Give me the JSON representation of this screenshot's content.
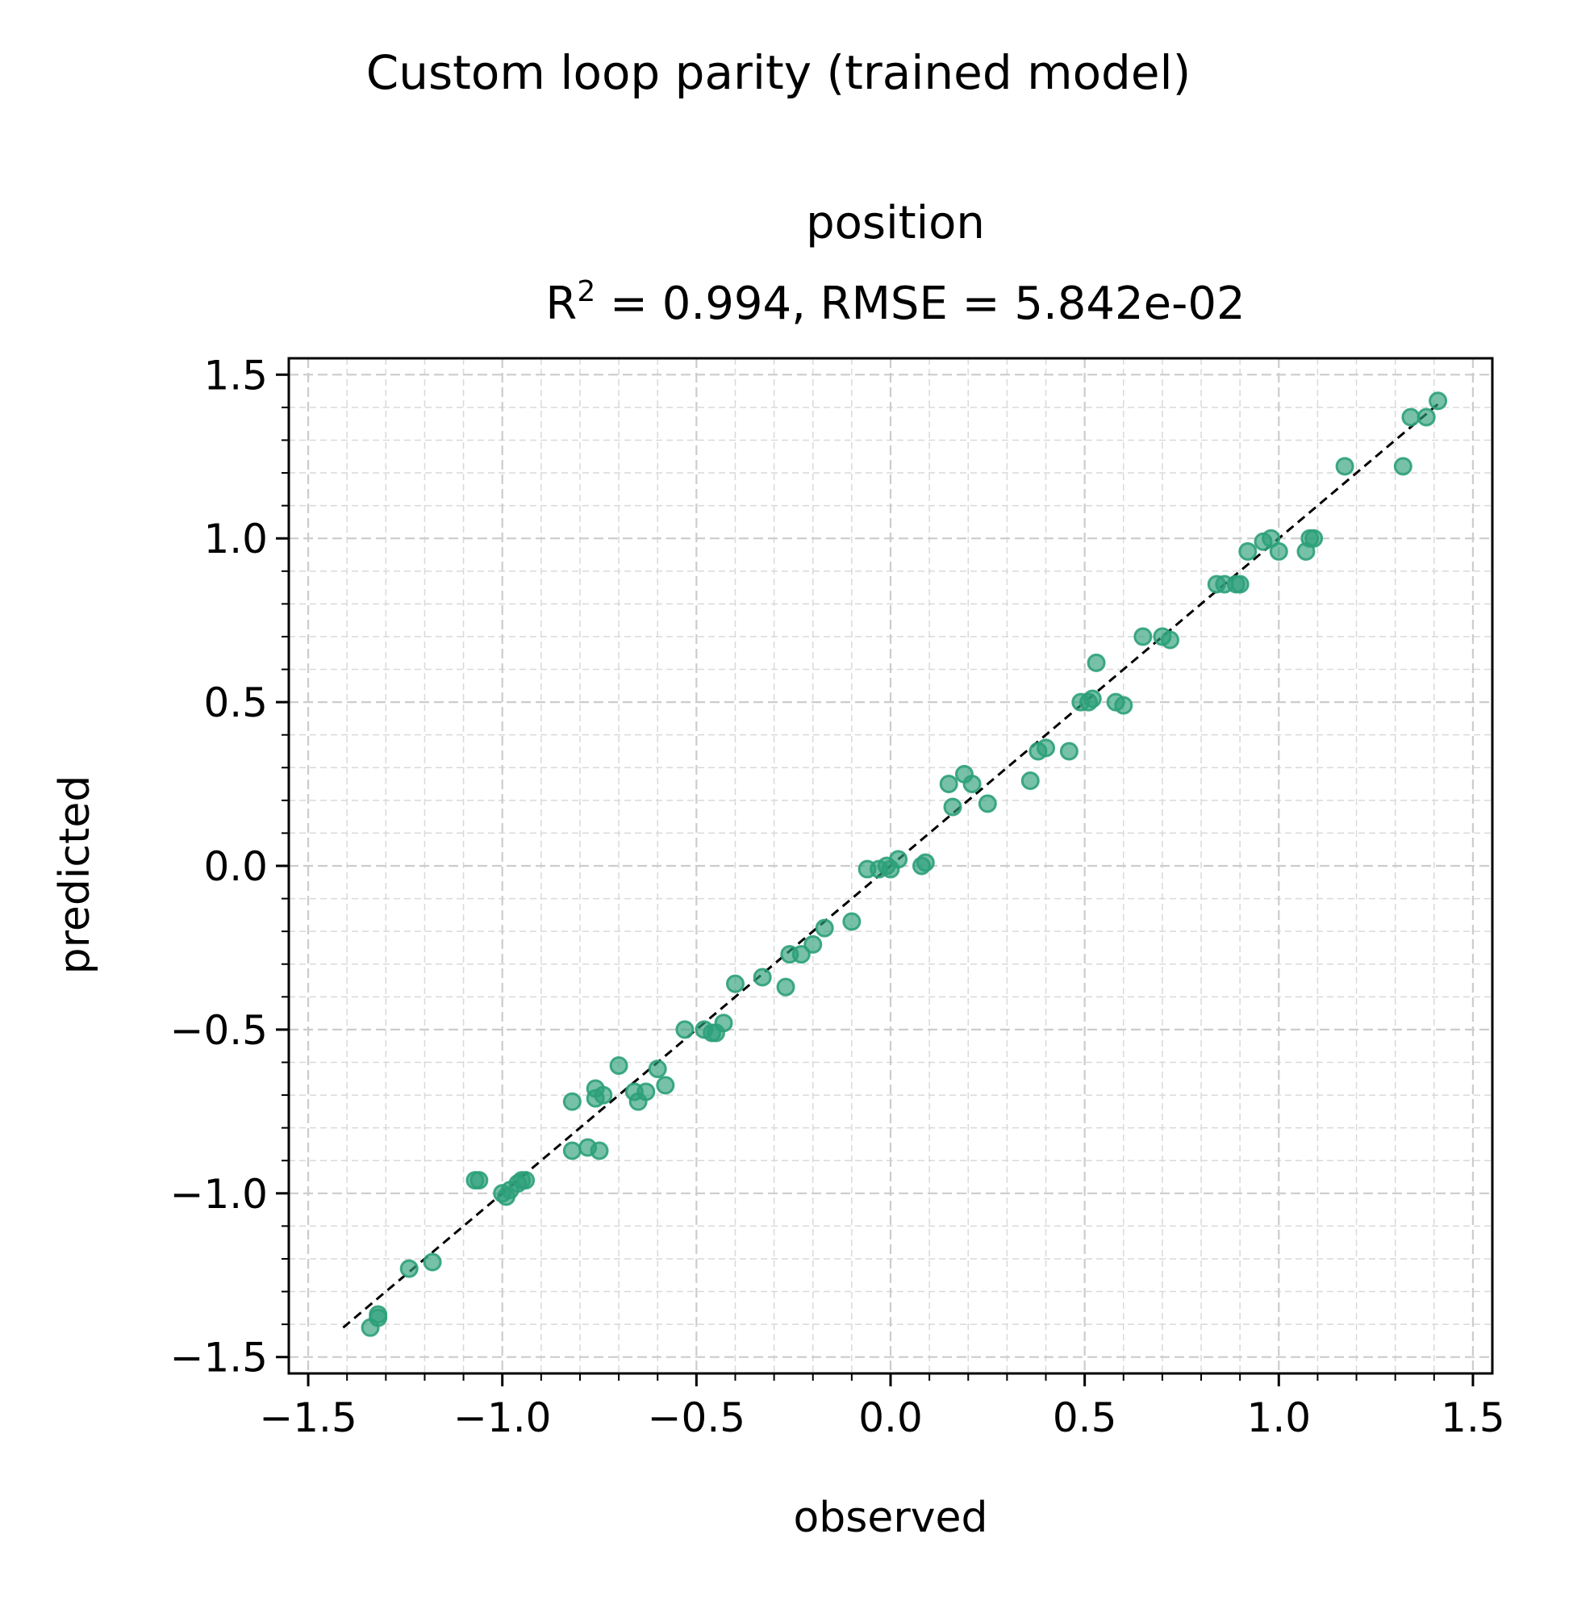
{
  "suptitle": "Custom loop parity (trained model)",
  "chart_data": {
    "type": "scatter",
    "title_line1": "position",
    "title_line2_prefix": "R",
    "title_line2_sup": "2",
    "title_line2_suffix": " = 0.994, RMSE = 5.842e-02",
    "xlabel": "observed",
    "ylabel": "predicted",
    "xlim": [
      -1.55,
      1.55
    ],
    "ylim": [
      -1.55,
      1.55
    ],
    "xticks": [
      -1.5,
      -1.0,
      -0.5,
      0.0,
      0.5,
      1.0,
      1.5
    ],
    "xtick_labels": [
      "−1.5",
      "−1.0",
      "−0.5",
      "0.0",
      "0.5",
      "1.0",
      "1.5"
    ],
    "yticks": [
      -1.5,
      -1.0,
      -0.5,
      0.0,
      0.5,
      1.0,
      1.5
    ],
    "ytick_labels": [
      "−1.5",
      "−1.0",
      "−0.5",
      "0.0",
      "0.5",
      "1.0",
      "1.5"
    ],
    "minor_step": 0.1,
    "grid": true,
    "point_color": "#2ca07a",
    "reference_line": {
      "from": [
        -1.41,
        -1.41
      ],
      "to": [
        1.41,
        1.41
      ],
      "style": "dashed",
      "color": "#000000"
    },
    "points": [
      [
        -1.34,
        -1.41
      ],
      [
        -1.32,
        -1.37
      ],
      [
        -1.32,
        -1.38
      ],
      [
        -1.24,
        -1.23
      ],
      [
        -1.18,
        -1.21
      ],
      [
        -1.07,
        -0.96
      ],
      [
        -1.06,
        -0.96
      ],
      [
        -1.0,
        -1.0
      ],
      [
        -0.99,
        -1.01
      ],
      [
        -0.98,
        -0.99
      ],
      [
        -0.96,
        -0.97
      ],
      [
        -0.95,
        -0.96
      ],
      [
        -0.94,
        -0.96
      ],
      [
        -0.82,
        -0.72
      ],
      [
        -0.82,
        -0.87
      ],
      [
        -0.78,
        -0.86
      ],
      [
        -0.76,
        -0.68
      ],
      [
        -0.76,
        -0.71
      ],
      [
        -0.75,
        -0.87
      ],
      [
        -0.74,
        -0.7
      ],
      [
        -0.7,
        -0.61
      ],
      [
        -0.66,
        -0.69
      ],
      [
        -0.65,
        -0.72
      ],
      [
        -0.63,
        -0.69
      ],
      [
        -0.6,
        -0.62
      ],
      [
        -0.58,
        -0.67
      ],
      [
        -0.53,
        -0.5
      ],
      [
        -0.48,
        -0.5
      ],
      [
        -0.46,
        -0.51
      ],
      [
        -0.45,
        -0.51
      ],
      [
        -0.43,
        -0.48
      ],
      [
        -0.4,
        -0.36
      ],
      [
        -0.33,
        -0.34
      ],
      [
        -0.27,
        -0.37
      ],
      [
        -0.26,
        -0.27
      ],
      [
        -0.23,
        -0.27
      ],
      [
        -0.2,
        -0.24
      ],
      [
        -0.17,
        -0.19
      ],
      [
        -0.1,
        -0.17
      ],
      [
        -0.06,
        -0.01
      ],
      [
        -0.03,
        -0.01
      ],
      [
        -0.01,
        0.0
      ],
      [
        0.0,
        -0.01
      ],
      [
        0.02,
        0.02
      ],
      [
        0.08,
        0.0
      ],
      [
        0.09,
        0.01
      ],
      [
        0.15,
        0.25
      ],
      [
        0.16,
        0.18
      ],
      [
        0.19,
        0.28
      ],
      [
        0.21,
        0.25
      ],
      [
        0.25,
        0.19
      ],
      [
        0.36,
        0.26
      ],
      [
        0.38,
        0.35
      ],
      [
        0.4,
        0.36
      ],
      [
        0.46,
        0.35
      ],
      [
        0.49,
        0.5
      ],
      [
        0.51,
        0.5
      ],
      [
        0.52,
        0.51
      ],
      [
        0.53,
        0.62
      ],
      [
        0.58,
        0.5
      ],
      [
        0.6,
        0.49
      ],
      [
        0.65,
        0.7
      ],
      [
        0.7,
        0.7
      ],
      [
        0.72,
        0.69
      ],
      [
        0.84,
        0.86
      ],
      [
        0.86,
        0.86
      ],
      [
        0.89,
        0.86
      ],
      [
        0.9,
        0.86
      ],
      [
        0.92,
        0.96
      ],
      [
        0.96,
        0.99
      ],
      [
        0.98,
        1.0
      ],
      [
        1.0,
        0.96
      ],
      [
        1.07,
        0.96
      ],
      [
        1.08,
        1.0
      ],
      [
        1.09,
        1.0
      ],
      [
        1.17,
        1.22
      ],
      [
        1.32,
        1.22
      ],
      [
        1.34,
        1.37
      ],
      [
        1.38,
        1.37
      ],
      [
        1.41,
        1.42
      ]
    ]
  }
}
